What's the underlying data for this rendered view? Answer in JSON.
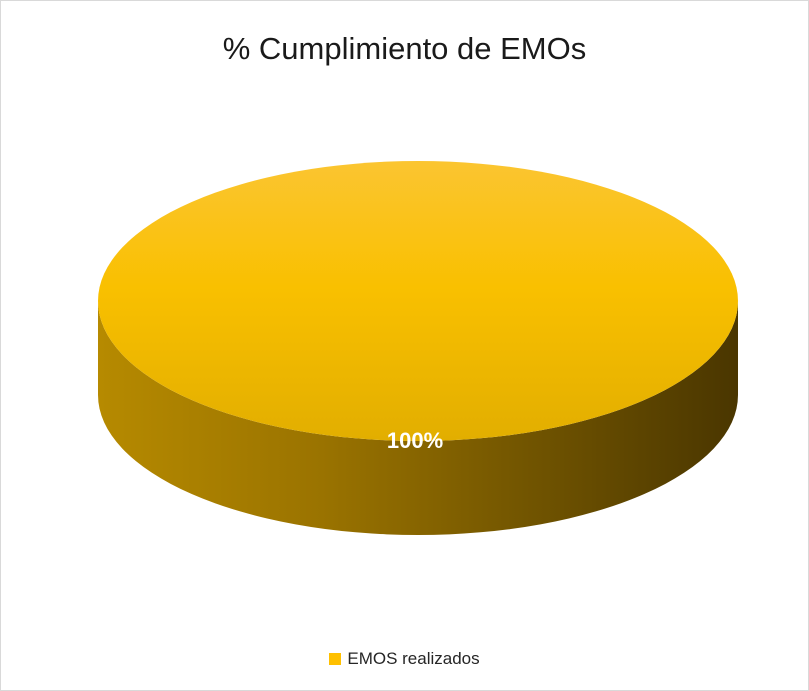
{
  "chart_data": {
    "type": "pie",
    "title": "% Cumplimiento de EMOs",
    "categories": [
      "EMOS realizados"
    ],
    "values": [
      100
    ],
    "data_labels": [
      "100%"
    ],
    "colors": [
      "#FFC000"
    ],
    "legend_position": "bottom",
    "style": "3d"
  }
}
